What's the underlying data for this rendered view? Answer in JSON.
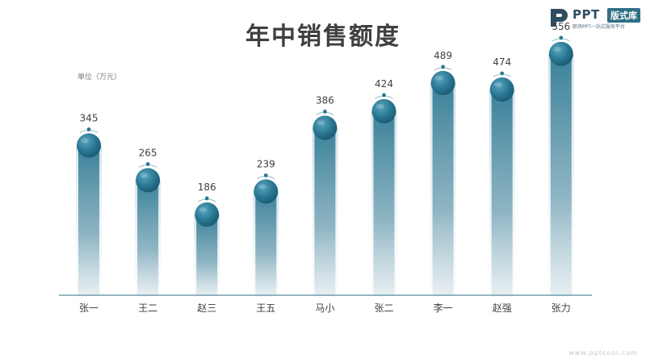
{
  "logo": {
    "wordmark": "PPT",
    "badge": "版式库",
    "slogan": "职场PPT一站式服务平台"
  },
  "watermark": "www.pptcool.com",
  "chart_data": {
    "type": "bar",
    "title": "年中销售额度",
    "unit_label": "单位（万元）",
    "categories": [
      "张一",
      "王二",
      "赵三",
      "王五",
      "马小",
      "张二",
      "李一",
      "赵强",
      "张力"
    ],
    "values": [
      345,
      265,
      186,
      239,
      386,
      424,
      489,
      474,
      556
    ],
    "ylim": [
      0,
      600
    ],
    "grid": false,
    "legend": "none",
    "colors": {
      "bar_top": "#3a8199",
      "bar_bottom": "#dfe9ee",
      "ball": "#2a7894",
      "axis": "#2e6f87",
      "value_text": "#404040",
      "category_text": "#404040"
    }
  }
}
